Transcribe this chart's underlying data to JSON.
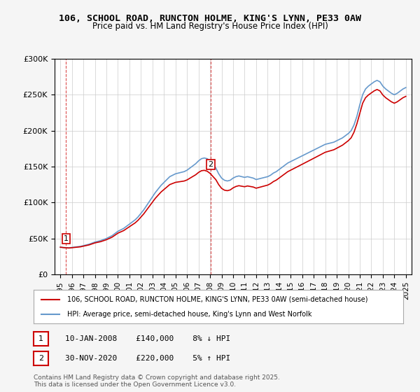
{
  "title_line1": "106, SCHOOL ROAD, RUNCTON HOLME, KING'S LYNN, PE33 0AW",
  "title_line2": "Price paid vs. HM Land Registry's House Price Index (HPI)",
  "ylabel": "",
  "xlabel": "",
  "ylim": [
    0,
    300000
  ],
  "yticks": [
    0,
    50000,
    100000,
    150000,
    200000,
    250000,
    300000
  ],
  "ytick_labels": [
    "£0",
    "£50K",
    "£100K",
    "£150K",
    "£200K",
    "£250K",
    "£300K"
  ],
  "background_color": "#f5f5f5",
  "plot_bg_color": "#ffffff",
  "line1_color": "#cc0000",
  "line2_color": "#6699cc",
  "line1_label": "106, SCHOOL ROAD, RUNCTON HOLME, KING'S LYNN, PE33 0AW (semi-detached house)",
  "line2_label": "HPI: Average price, semi-detached house, King's Lynn and West Norfolk",
  "marker1_year": 2008.04,
  "marker1_price": 140000,
  "marker1_label": "1",
  "marker1_text": "10-JAN-2008    £140,000    8% ↓ HPI",
  "marker2_year": 2020.92,
  "marker2_price": 220000,
  "marker2_label": "2",
  "marker2_text": "30-NOV-2020    £220,000    5% ↑ HPI",
  "copyright_text": "Contains HM Land Registry data © Crown copyright and database right 2025.\nThis data is licensed under the Open Government Licence v3.0.",
  "hpi_years": [
    1995.0,
    1995.25,
    1995.5,
    1995.75,
    1996.0,
    1996.25,
    1996.5,
    1996.75,
    1997.0,
    1997.25,
    1997.5,
    1997.75,
    1998.0,
    1998.25,
    1998.5,
    1998.75,
    1999.0,
    1999.25,
    1999.5,
    1999.75,
    2000.0,
    2000.25,
    2000.5,
    2000.75,
    2001.0,
    2001.25,
    2001.5,
    2001.75,
    2002.0,
    2002.25,
    2002.5,
    2002.75,
    2003.0,
    2003.25,
    2003.5,
    2003.75,
    2004.0,
    2004.25,
    2004.5,
    2004.75,
    2005.0,
    2005.25,
    2005.5,
    2005.75,
    2006.0,
    2006.25,
    2006.5,
    2006.75,
    2007.0,
    2007.25,
    2007.5,
    2007.75,
    2008.0,
    2008.25,
    2008.5,
    2008.75,
    2009.0,
    2009.25,
    2009.5,
    2009.75,
    2010.0,
    2010.25,
    2010.5,
    2010.75,
    2011.0,
    2011.25,
    2011.5,
    2011.75,
    2012.0,
    2012.25,
    2012.5,
    2012.75,
    2013.0,
    2013.25,
    2013.5,
    2013.75,
    2014.0,
    2014.25,
    2014.5,
    2014.75,
    2015.0,
    2015.25,
    2015.5,
    2015.75,
    2016.0,
    2016.25,
    2016.5,
    2016.75,
    2017.0,
    2017.25,
    2017.5,
    2017.75,
    2018.0,
    2018.25,
    2018.5,
    2018.75,
    2019.0,
    2019.25,
    2019.5,
    2019.75,
    2020.0,
    2020.25,
    2020.5,
    2020.75,
    2021.0,
    2021.25,
    2021.5,
    2021.75,
    2022.0,
    2022.25,
    2022.5,
    2022.75,
    2023.0,
    2023.25,
    2023.5,
    2023.75,
    2024.0,
    2024.25,
    2024.5,
    2024.75,
    2025.0
  ],
  "hpi_values": [
    38000,
    37500,
    37200,
    37000,
    37500,
    38000,
    38500,
    39000,
    40000,
    41000,
    42000,
    43500,
    45000,
    46000,
    47000,
    48500,
    50000,
    52000,
    54000,
    57000,
    60000,
    62000,
    64000,
    67000,
    70000,
    73000,
    76000,
    80000,
    85000,
    90000,
    96000,
    102000,
    108000,
    114000,
    119000,
    124000,
    128000,
    132000,
    136000,
    138000,
    140000,
    141000,
    142000,
    143000,
    145000,
    148000,
    151000,
    154000,
    158000,
    161000,
    162000,
    161000,
    158000,
    154000,
    148000,
    140000,
    134000,
    131000,
    130000,
    131000,
    134000,
    136000,
    137000,
    136000,
    135000,
    136000,
    135000,
    134000,
    132000,
    133000,
    134000,
    135000,
    136000,
    138000,
    141000,
    143000,
    146000,
    149000,
    152000,
    155000,
    157000,
    159000,
    161000,
    163000,
    165000,
    167000,
    169000,
    171000,
    173000,
    175000,
    177000,
    179000,
    181000,
    182000,
    183000,
    184000,
    186000,
    188000,
    190000,
    193000,
    196000,
    200000,
    208000,
    220000,
    236000,
    250000,
    258000,
    262000,
    265000,
    268000,
    270000,
    268000,
    262000,
    258000,
    255000,
    252000,
    250000,
    252000,
    255000,
    258000,
    260000
  ],
  "price_years": [
    1995.5,
    2008.04,
    2020.92
  ],
  "price_values": [
    37000,
    140000,
    220000
  ],
  "xlim": [
    1994.5,
    2025.5
  ],
  "xtick_years": [
    1995,
    1996,
    1997,
    1998,
    1999,
    2000,
    2001,
    2002,
    2003,
    2004,
    2005,
    2006,
    2007,
    2008,
    2009,
    2010,
    2011,
    2012,
    2013,
    2014,
    2015,
    2016,
    2017,
    2018,
    2019,
    2020,
    2021,
    2022,
    2023,
    2024,
    2025
  ]
}
